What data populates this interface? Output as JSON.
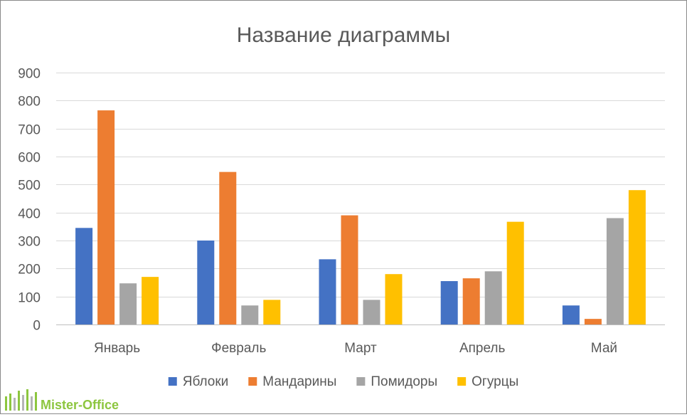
{
  "chart_data": {
    "type": "bar",
    "title": "Название диаграммы",
    "xlabel": "",
    "ylabel": "",
    "categories": [
      "Январь",
      "Февраль",
      "Март",
      "Апрель",
      "Май"
    ],
    "ylim": [
      0,
      900
    ],
    "yticks": [
      0,
      100,
      200,
      300,
      400,
      500,
      600,
      700,
      800,
      900
    ],
    "grid": true,
    "legend_position": "bottom",
    "series": [
      {
        "name": "Яблоки",
        "color": "#4472c4",
        "values": [
          345,
          300,
          233,
          155,
          68
        ]
      },
      {
        "name": "Мандарины",
        "color": "#ed7d31",
        "values": [
          765,
          545,
          390,
          165,
          20
        ]
      },
      {
        "name": "Помидоры",
        "color": "#a5a5a5",
        "values": [
          147,
          68,
          88,
          190,
          380
        ]
      },
      {
        "name": "Огурцы",
        "color": "#ffc000",
        "values": [
          170,
          88,
          180,
          367,
          480
        ]
      }
    ]
  },
  "watermark": {
    "text": "Mister-Office",
    "color": "#8dc63f"
  }
}
